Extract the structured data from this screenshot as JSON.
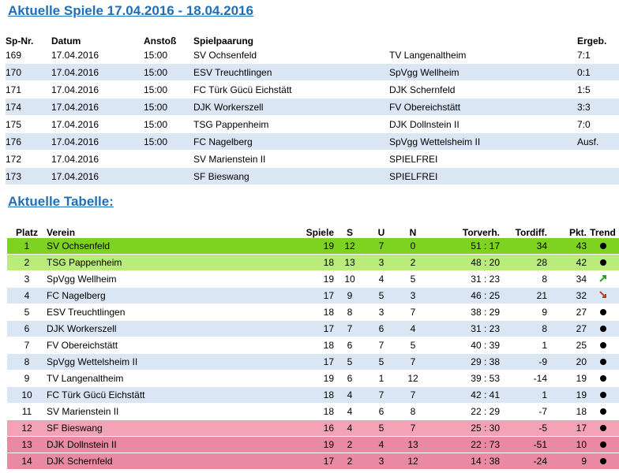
{
  "title_games": "Aktuelle Spiele 17.04.2016 - 18.04.2016",
  "title_table": "Aktuelle Tabelle:",
  "games_headers": [
    "Sp-Nr.",
    "Datum",
    "Anstoß",
    "Spielpaarung",
    "",
    "Ergeb."
  ],
  "games": [
    {
      "nr": "169",
      "datum": "17.04.2016",
      "anstoss": "15:00",
      "heim": "SV Ochsenfeld",
      "gast": "TV Langenaltheim",
      "ergebnis": "7:1"
    },
    {
      "nr": "170",
      "datum": "17.04.2016",
      "anstoss": "15:00",
      "heim": "ESV Treuchtlingen",
      "gast": "SpVgg Wellheim",
      "ergebnis": "0:1"
    },
    {
      "nr": "171",
      "datum": "17.04.2016",
      "anstoss": "15:00",
      "heim": "FC Türk Gücü Eichstätt",
      "gast": "DJK Schernfeld",
      "ergebnis": "1:5"
    },
    {
      "nr": "174",
      "datum": "17.04.2016",
      "anstoss": "15:00",
      "heim": "DJK Workerszell",
      "gast": "FV Obereichstätt",
      "ergebnis": "3:3"
    },
    {
      "nr": "175",
      "datum": "17.04.2016",
      "anstoss": "15:00",
      "heim": "TSG Pappenheim",
      "gast": "DJK Dollnstein II",
      "ergebnis": "7:0"
    },
    {
      "nr": "176",
      "datum": "17.04.2016",
      "anstoss": "15:00",
      "heim": "FC Nagelberg",
      "gast": "SpVgg Wettelsheim II",
      "ergebnis": "Ausf."
    },
    {
      "nr": "172",
      "datum": "17.04.2016",
      "anstoss": "",
      "heim": "SV Marienstein II",
      "gast": "SPIELFREI",
      "ergebnis": ""
    },
    {
      "nr": "173",
      "datum": "17.04.2016",
      "anstoss": "",
      "heim": "SF Bieswang",
      "gast": "SPIELFREI",
      "ergebnis": ""
    }
  ],
  "table_headers": [
    "Platz",
    "Verein",
    "Spiele",
    "S",
    "U",
    "N",
    "Torverh.",
    "Tordiff.",
    "Pkt.",
    "Trend"
  ],
  "standings": [
    {
      "platz": "1",
      "verein": "SV Ochsenfeld",
      "spiele": "19",
      "s": "12",
      "u": "7",
      "n": "0",
      "torverh": "51 : 17",
      "tordiff": "34",
      "pkt": "43",
      "trend": "dot-icon"
    },
    {
      "platz": "2",
      "verein": "TSG Pappenheim",
      "spiele": "18",
      "s": "13",
      "u": "3",
      "n": "2",
      "torverh": "48 : 20",
      "tordiff": "28",
      "pkt": "42",
      "trend": "dot-icon"
    },
    {
      "platz": "3",
      "verein": "SpVgg Wellheim",
      "spiele": "19",
      "s": "10",
      "u": "4",
      "n": "5",
      "torverh": "31 : 23",
      "tordiff": "8",
      "pkt": "34",
      "trend": "arrow-up-icon"
    },
    {
      "platz": "4",
      "verein": "FC Nagelberg",
      "spiele": "17",
      "s": "9",
      "u": "5",
      "n": "3",
      "torverh": "46 : 25",
      "tordiff": "21",
      "pkt": "32",
      "trend": "arrow-down-icon"
    },
    {
      "platz": "5",
      "verein": "ESV Treuchtlingen",
      "spiele": "18",
      "s": "8",
      "u": "3",
      "n": "7",
      "torverh": "38 : 29",
      "tordiff": "9",
      "pkt": "27",
      "trend": "dot-icon"
    },
    {
      "platz": "6",
      "verein": "DJK Workerszell",
      "spiele": "17",
      "s": "7",
      "u": "6",
      "n": "4",
      "torverh": "31 : 23",
      "tordiff": "8",
      "pkt": "27",
      "trend": "dot-icon"
    },
    {
      "platz": "7",
      "verein": "FV Obereichstätt",
      "spiele": "18",
      "s": "6",
      "u": "7",
      "n": "5",
      "torverh": "40 : 39",
      "tordiff": "1",
      "pkt": "25",
      "trend": "dot-icon"
    },
    {
      "platz": "8",
      "verein": "SpVgg Wettelsheim II",
      "spiele": "17",
      "s": "5",
      "u": "5",
      "n": "7",
      "torverh": "29 : 38",
      "tordiff": "-9",
      "pkt": "20",
      "trend": "dot-icon"
    },
    {
      "platz": "9",
      "verein": "TV Langenaltheim",
      "spiele": "19",
      "s": "6",
      "u": "1",
      "n": "12",
      "torverh": "39 : 53",
      "tordiff": "-14",
      "pkt": "19",
      "trend": "dot-icon"
    },
    {
      "platz": "10",
      "verein": "FC Türk Gücü Eichstätt",
      "spiele": "18",
      "s": "4",
      "u": "7",
      "n": "7",
      "torverh": "42 : 41",
      "tordiff": "1",
      "pkt": "19",
      "trend": "dot-icon"
    },
    {
      "platz": "11",
      "verein": "SV Marienstein II",
      "spiele": "18",
      "s": "4",
      "u": "6",
      "n": "8",
      "torverh": "22 : 29",
      "tordiff": "-7",
      "pkt": "18",
      "trend": "dot-icon"
    },
    {
      "platz": "12",
      "verein": "SF Bieswang",
      "spiele": "16",
      "s": "4",
      "u": "5",
      "n": "7",
      "torverh": "25 : 30",
      "tordiff": "-5",
      "pkt": "17",
      "trend": "dot-icon"
    },
    {
      "platz": "13",
      "verein": "DJK Dollnstein II",
      "spiele": "19",
      "s": "2",
      "u": "4",
      "n": "13",
      "torverh": "22 : 73",
      "tordiff": "-51",
      "pkt": "10",
      "trend": "dot-icon"
    },
    {
      "platz": "14",
      "verein": "DJK Schernfeld",
      "spiele": "17",
      "s": "2",
      "u": "3",
      "n": "12",
      "torverh": "14 : 38",
      "tordiff": "-24",
      "pkt": "9",
      "trend": "dot-icon"
    }
  ],
  "colors": {
    "heading": "#1f6fb8",
    "row_alt": "#dbe6f4",
    "first_place": "#7ed321",
    "second_place": "#b9ec78",
    "relegation": "#f3a3b5",
    "relegation_dark": "#ea8aa2",
    "trend_up": "#2a9d2a",
    "trend_down": "#c0392b"
  }
}
